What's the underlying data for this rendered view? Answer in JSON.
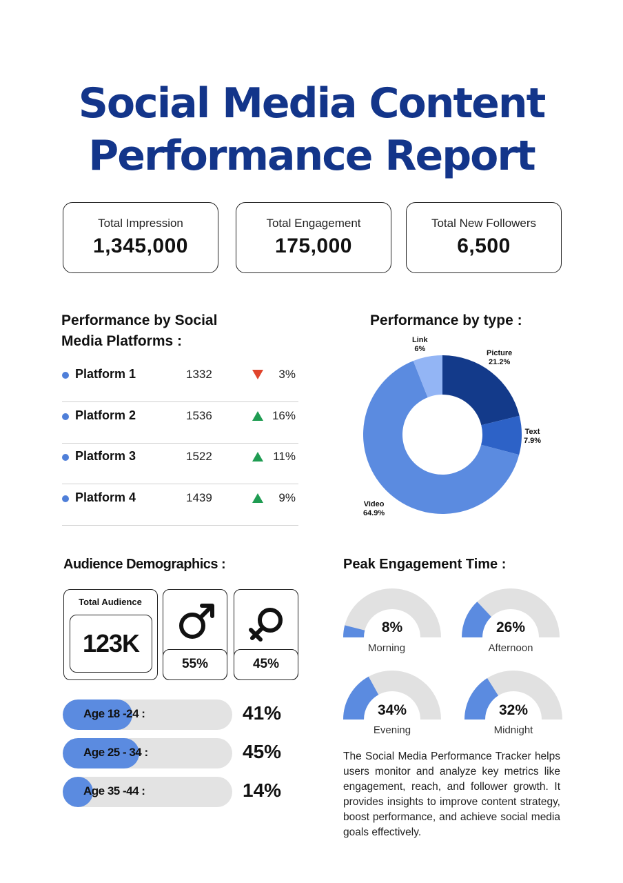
{
  "title": {
    "line1": "Social Media Content",
    "line2": "Performance Report"
  },
  "kpis": [
    {
      "label": "Total Impression",
      "value": "1,345,000"
    },
    {
      "label": "Total Engagement",
      "value": "175,000"
    },
    {
      "label": "Total New Followers",
      "value": "6,500"
    }
  ],
  "platforms": {
    "heading_line1": "Performance by Social",
    "heading_line2": "Media Platforms :",
    "rows": [
      {
        "name": "Platform 1",
        "value": "1332",
        "trend": "down",
        "pct": "3%"
      },
      {
        "name": "Platform 2",
        "value": "1536",
        "trend": "up",
        "pct": "16%"
      },
      {
        "name": "Platform 3",
        "value": "1522",
        "trend": "up",
        "pct": "11%"
      },
      {
        "name": "Platform 4",
        "value": "1439",
        "trend": "up",
        "pct": "9%"
      }
    ],
    "colors": {
      "dot": "#4f7fd9",
      "up": "#1f9c52",
      "down": "#e0442c"
    }
  },
  "chart_data": {
    "type": "pie",
    "title": "Performance by type :",
    "labels": [
      "Picture",
      "Text",
      "Video",
      "Link"
    ],
    "values": [
      21.2,
      7.9,
      64.9,
      6
    ],
    "value_labels": [
      "21.2%",
      "7.9%",
      "64.9%",
      "6%"
    ],
    "colors": [
      "#133a8a",
      "#2d62c7",
      "#5b8be0",
      "#93b5f5"
    ],
    "donut": true
  },
  "audience": {
    "heading": "Audience Demographics :",
    "total_label": "Total Audience",
    "total_value": "123K",
    "male_pct": "55%",
    "female_pct": "45%",
    "male_icon": "male-symbol-icon",
    "female_icon": "female-symbol-icon",
    "ages": [
      {
        "label": "Age 18 -24 :",
        "pct": "41%",
        "fraction": 0.41
      },
      {
        "label": "Age 25 - 34 :",
        "pct": "45%",
        "fraction": 0.45
      },
      {
        "label": "Age 35 -44 :",
        "pct": "14%",
        "fraction": 0.14
      }
    ]
  },
  "peak": {
    "heading": "Peak Engagement Time :",
    "gauges": [
      {
        "label": "Morning",
        "pct": "8%",
        "fraction": 0.08
      },
      {
        "label": "Afternoon",
        "pct": "26%",
        "fraction": 0.26
      },
      {
        "label": "Evening",
        "pct": "34%",
        "fraction": 0.34
      },
      {
        "label": "Midnight",
        "pct": "32%",
        "fraction": 0.32
      }
    ],
    "colors": {
      "fill": "#5b8be0",
      "track": "#e1e1e1"
    }
  },
  "description": "The Social Media Performance Tracker helps users monitor and analyze key metrics like engagement, reach, and follower growth. It provides insights to improve content strategy, boost performance, and achieve social media goals effectively."
}
